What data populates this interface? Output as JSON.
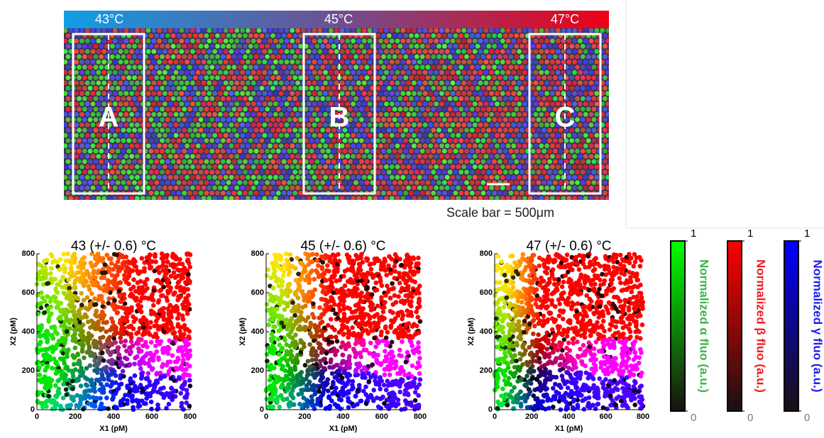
{
  "header": {
    "temperatures": [
      "43°C",
      "45°C",
      "47°C"
    ],
    "regions": [
      "A",
      "B",
      "C"
    ],
    "scale_note": "Scale bar = 500μm"
  },
  "plots": [
    {
      "title": "43 (+/- 0.6) °C",
      "x_label": "X1 (pM)",
      "y_label": "X2 (pM)",
      "xlim": [
        0,
        800
      ],
      "ylim": [
        0,
        800
      ],
      "xticks": [
        0,
        200,
        400,
        600,
        800
      ],
      "yticks": [
        0,
        200,
        400,
        600,
        800
      ]
    },
    {
      "title": "45 (+/- 0.6) °C",
      "x_label": "X1 (pM)",
      "y_label": "X2 (pM)",
      "xlim": [
        0,
        800
      ],
      "ylim": [
        0,
        800
      ],
      "xticks": [
        0,
        200,
        400,
        600,
        800
      ],
      "yticks": [
        0,
        200,
        400,
        600,
        800
      ]
    },
    {
      "title": "47 (+/- 0.6) °C",
      "x_label": "X1 (pM)",
      "y_label": "X2 (pM)",
      "xlim": [
        0,
        800
      ],
      "ylim": [
        0,
        800
      ],
      "xticks": [
        0,
        200,
        400,
        600,
        800
      ],
      "yticks": [
        0,
        200,
        400,
        600,
        800
      ]
    }
  ],
  "colorbars": [
    {
      "label": "Normalized α fluo (a.u.)",
      "color": "#00ff00",
      "text_color": "#3cb34a",
      "ticks": [
        1,
        0
      ]
    },
    {
      "label": "Normalized β fluo (a.u.)",
      "color": "#ff0000",
      "text_color": "#ee1c24",
      "ticks": [
        1,
        0
      ]
    },
    {
      "label": "Normalized γ fluo (a.u.)",
      "color": "#0000ff",
      "text_color": "#1c1cee",
      "ticks": [
        1,
        0
      ]
    }
  ]
}
